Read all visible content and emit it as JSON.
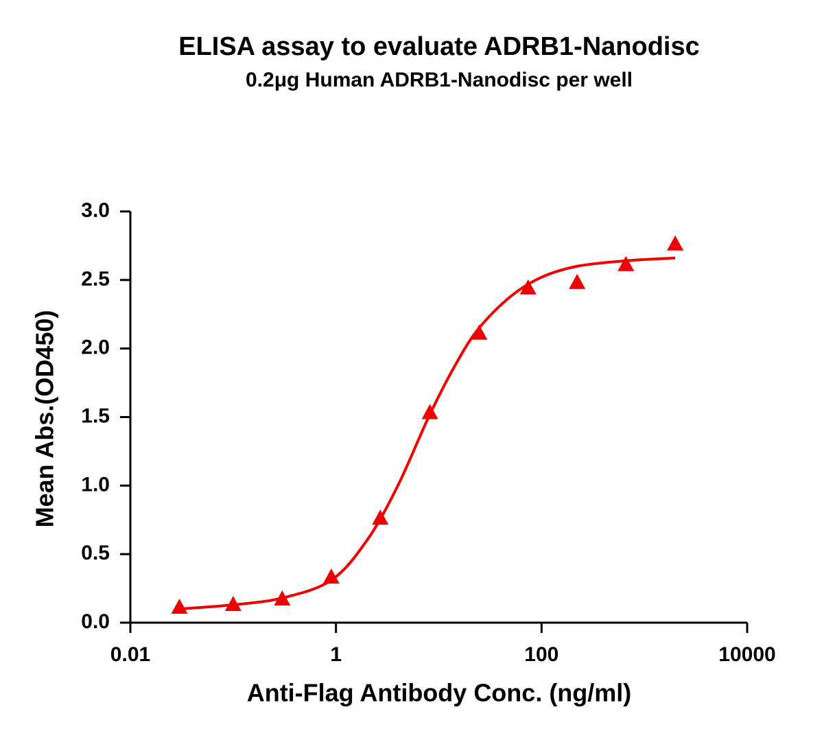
{
  "chart_data": {
    "type": "scatter",
    "title": "ELISA assay to evaluate ADRB1-Nanodisc",
    "subtitle": "0.2μg Human ADRB1-Nanodisc per well",
    "x_label": "Anti-Flag Antibody Conc. (ng/ml)",
    "y_label": "Mean Abs.(OD450)",
    "x_scale": "log",
    "xlim": [
      0.01,
      10000
    ],
    "xticks": [
      0.01,
      1,
      100,
      10000
    ],
    "ylim": [
      0,
      3
    ],
    "yticks": [
      {
        "value": 0,
        "label": "0.0"
      },
      0.5,
      {
        "value": 1,
        "label": "1.0"
      },
      1.5,
      {
        "value": 2,
        "label": "2.0"
      },
      2.5,
      {
        "value": 3,
        "label": "3.0"
      }
    ],
    "series": [
      {
        "name": "ADRB1-Nanodisc",
        "color": "#ee0000",
        "marker": "triangle",
        "x": [
          0.03,
          0.1,
          0.3,
          0.9,
          2.7,
          8.2,
          24.7,
          74,
          222,
          661,
          1995
        ],
        "values": [
          0.11,
          0.13,
          0.17,
          0.33,
          0.76,
          1.53,
          2.11,
          2.44,
          2.48,
          2.61,
          2.76
        ]
      },
      {
        "name": "Fit",
        "color": "#ee0000",
        "marker": "line",
        "x": [
          0.03,
          0.1,
          0.3,
          0.9,
          2,
          4,
          8.2,
          15,
          24.7,
          50,
          100,
          222,
          661,
          1995
        ],
        "values": [
          0.1,
          0.13,
          0.18,
          0.31,
          0.6,
          1.0,
          1.52,
          1.9,
          2.15,
          2.38,
          2.52,
          2.6,
          2.64,
          2.66
        ]
      }
    ]
  }
}
